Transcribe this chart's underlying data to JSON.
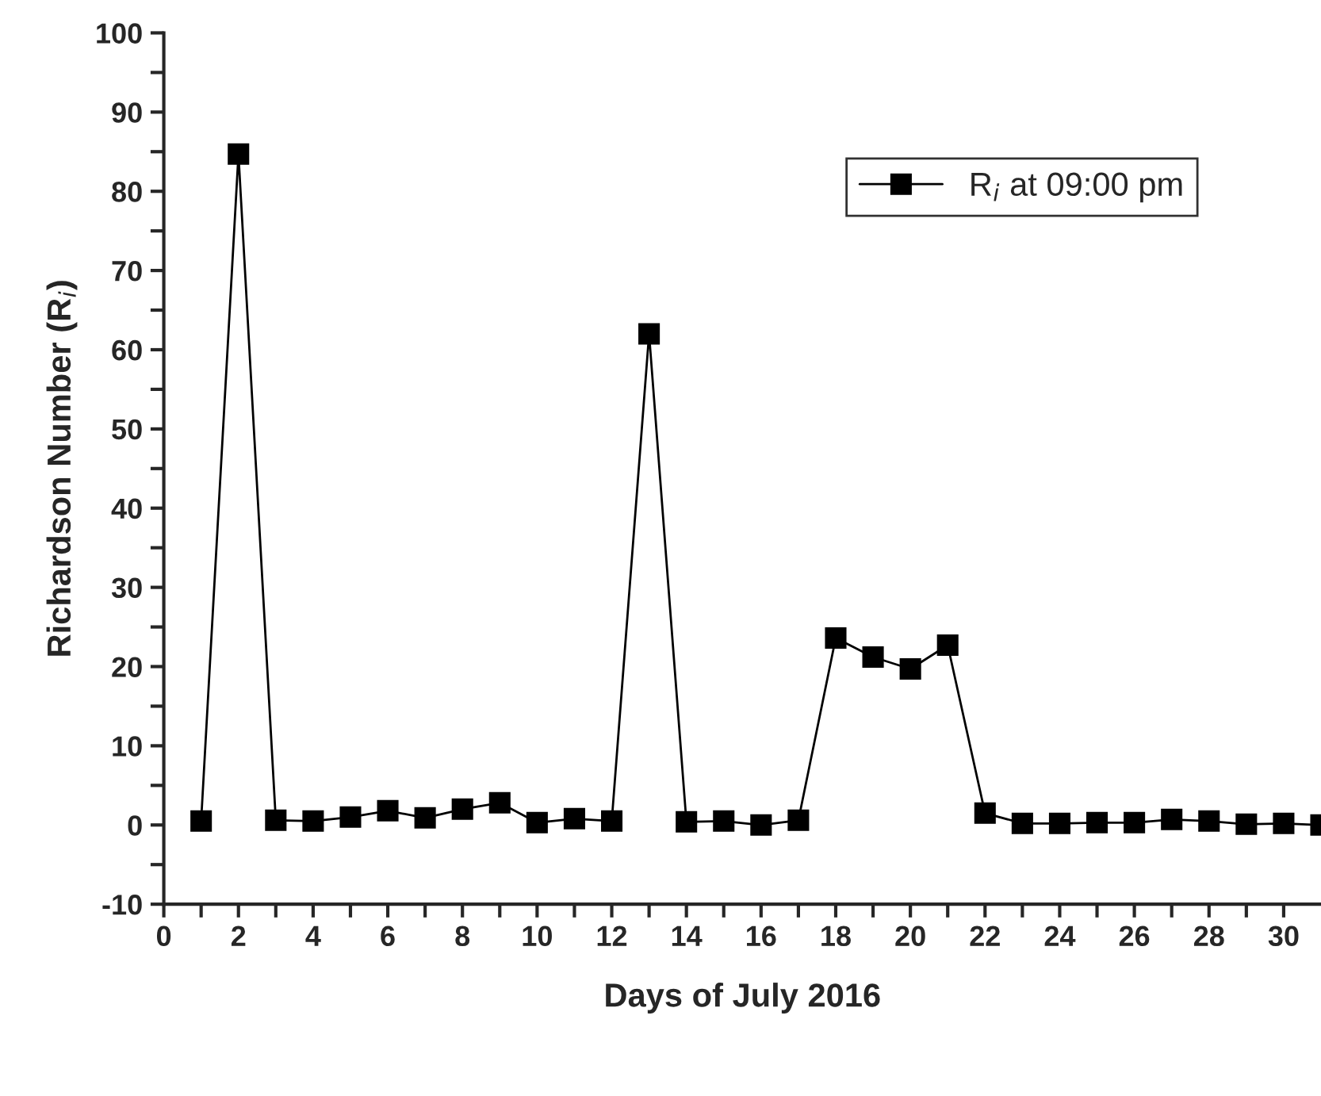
{
  "chart_data": {
    "type": "line",
    "xlabel": "Days of July 2016",
    "ylabel": "Richardson Number (R$_{i}$)",
    "x": [
      1,
      2,
      3,
      4,
      5,
      6,
      7,
      8,
      9,
      10,
      11,
      12,
      13,
      14,
      15,
      16,
      17,
      18,
      19,
      20,
      21,
      22,
      23,
      24,
      25,
      26,
      27,
      28,
      29,
      30,
      31
    ],
    "series": [
      {
        "name": "R$_{i}$ at 09:00 pm",
        "color": "#000000",
        "values": [
          0.5,
          84.7,
          0.6,
          0.5,
          1.0,
          1.8,
          0.9,
          2.0,
          2.8,
          0.3,
          0.8,
          0.5,
          62,
          0.4,
          0.5,
          0.0,
          0.6,
          23.6,
          21.2,
          19.7,
          22.7,
          1.5,
          0.2,
          0.2,
          0.3,
          0.3,
          0.7,
          0.5,
          0.1,
          0.2,
          0.0
        ]
      }
    ],
    "marker": "square",
    "line_style": "solid",
    "legend": "top right",
    "grid": false,
    "xlim": [
      0,
      31
    ],
    "xticks": [
      0,
      {
        "value": 1,
        "label": null
      },
      2,
      {
        "value": 3,
        "label": null
      },
      4,
      {
        "value": 5,
        "label": null
      },
      6,
      {
        "value": 7,
        "label": null
      },
      8,
      {
        "value": 9,
        "label": null
      },
      10,
      {
        "value": 11,
        "label": null
      },
      12,
      {
        "value": 13,
        "label": null
      },
      14,
      {
        "value": 15,
        "label": null
      },
      16,
      {
        "value": 17,
        "label": null
      },
      18,
      {
        "value": 19,
        "label": null
      },
      20,
      {
        "value": 21,
        "label": null
      },
      22,
      {
        "value": 23,
        "label": null
      },
      24,
      {
        "value": 25,
        "label": null
      },
      26,
      {
        "value": 27,
        "label": null
      },
      28,
      {
        "value": 29,
        "label": null
      },
      30
    ],
    "ylim": [
      -10,
      100
    ],
    "yticks": [
      -10,
      {
        "value": -5,
        "label": null
      },
      0,
      {
        "value": 5,
        "label": null
      },
      10,
      {
        "value": 15,
        "label": null
      },
      20,
      {
        "value": 25,
        "label": null
      },
      30,
      {
        "value": 35,
        "label": null
      },
      40,
      {
        "value": 45,
        "label": null
      },
      50,
      {
        "value": 55,
        "label": null
      },
      60,
      {
        "value": 65,
        "label": null
      },
      70,
      {
        "value": 75,
        "label": null
      },
      80,
      {
        "value": 85,
        "label": null
      },
      90,
      {
        "value": 95,
        "label": null
      },
      100
    ]
  }
}
